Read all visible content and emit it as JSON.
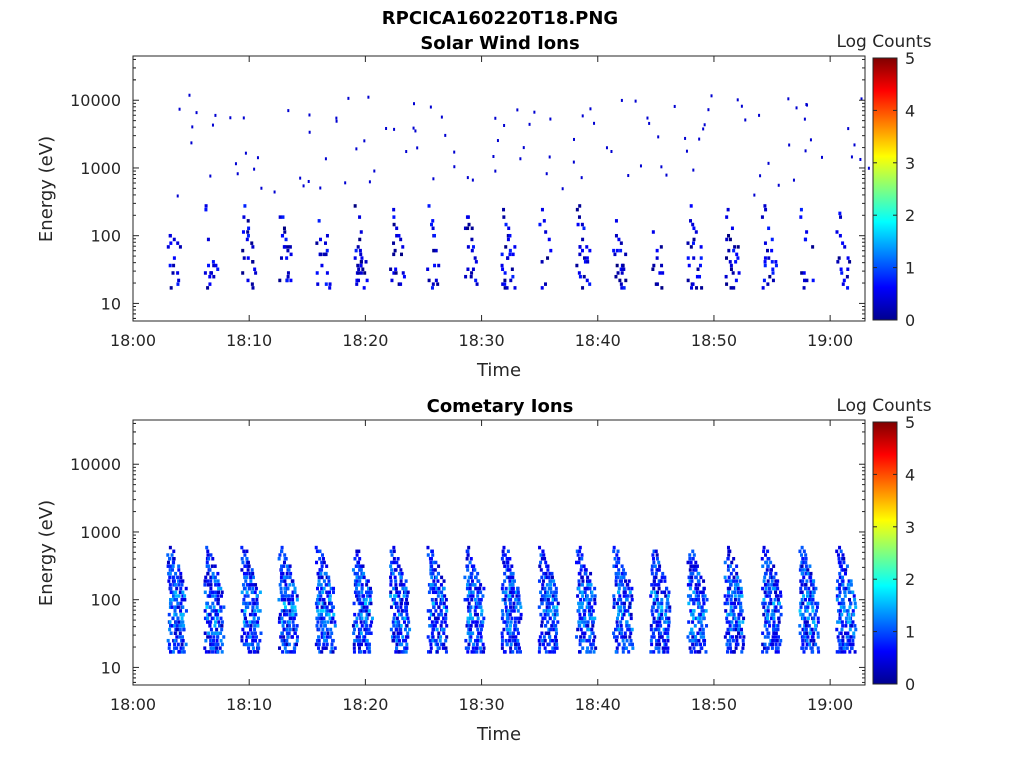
{
  "figure": {
    "filename_title": "RPCICA160220T18.PNG"
  },
  "colorbar": {
    "label": "Log Counts",
    "range": [
      0,
      5
    ],
    "ticks": [
      "0",
      "1",
      "2",
      "3",
      "4",
      "5"
    ],
    "colormap": "jet"
  },
  "chart_data": [
    {
      "type": "heatmap",
      "title": "Solar Wind Ions",
      "xlabel": "Time",
      "ylabel": "Energy (eV)",
      "yscale": "log",
      "ylim": [
        5.5,
        45000
      ],
      "xlim": [
        "18:00",
        "19:03"
      ],
      "xticks": [
        "18:00",
        "18:10",
        "18:20",
        "18:30",
        "18:40",
        "18:50",
        "19:00"
      ],
      "yticks": [
        "10",
        "100",
        "1000",
        "10000"
      ],
      "scan_period_min": 3.2,
      "first_scan_start": "18:03",
      "scan_count": 19,
      "sweep_energy_range_eV": [
        18,
        300
      ],
      "log_counts_range": [
        0,
        0.8
      ],
      "note_values": "sparse single-count detections repeating each energy sweep"
    },
    {
      "type": "heatmap",
      "title": "Cometary Ions",
      "xlabel": "Time",
      "ylabel": "Energy (eV)",
      "yscale": "log",
      "ylim": [
        5.5,
        45000
      ],
      "xlim": [
        "18:00",
        "19:03"
      ],
      "xticks": [
        "18:00",
        "18:10",
        "18:20",
        "18:30",
        "18:40",
        "18:50",
        "19:00"
      ],
      "yticks": [
        "10",
        "100",
        "1000",
        "10000"
      ],
      "scan_period_min": 3.2,
      "first_scan_start": "18:03",
      "scan_count": 19,
      "sweep_energy_range_eV": [
        18,
        700
      ],
      "log_counts_range": [
        0.3,
        1.7
      ]
    }
  ]
}
